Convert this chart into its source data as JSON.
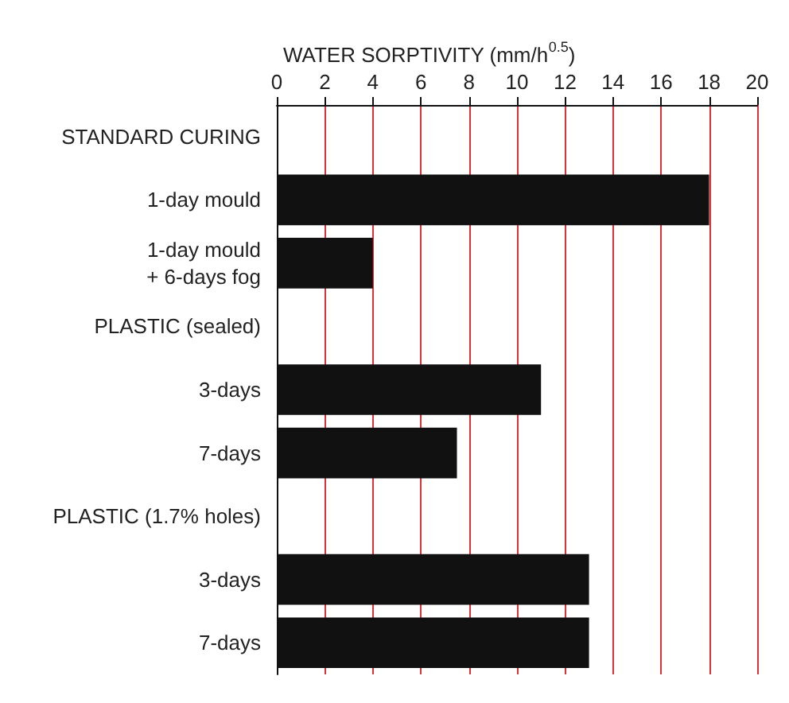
{
  "chart_data": {
    "type": "bar",
    "orientation": "horizontal",
    "xlabel": "WATER SORPTIVITY (mm/h$^{0.5}$)",
    "categories": [
      "STANDARD CURING",
      "1-day mould",
      "1-day mould\n+ 6-days fog",
      "PLASTIC (sealed)",
      "3-days",
      "7-days",
      "PLASTIC (1.7% holes)",
      "3-days",
      "7-days"
    ],
    "values": [
      null,
      18,
      4,
      null,
      11,
      7.5,
      null,
      13,
      13
    ],
    "color": "#111111",
    "xlim": [
      0,
      20
    ],
    "xticks": [
      0,
      2,
      4,
      6,
      8,
      10,
      12,
      14,
      16,
      18,
      20
    ],
    "grid": "x"
  }
}
